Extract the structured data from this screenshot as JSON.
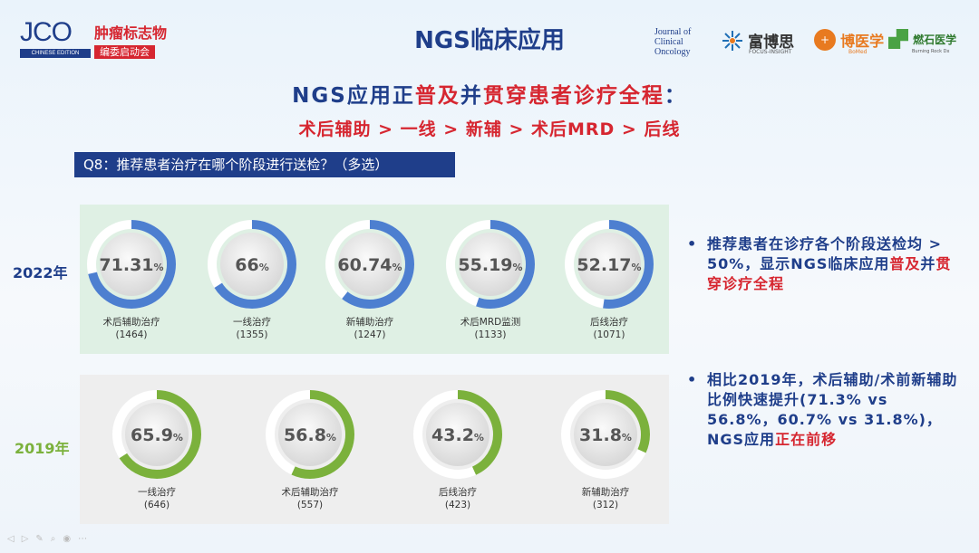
{
  "header": {
    "jco_logo": "JCO",
    "jco_edition": "CHINESE EDITION",
    "jco_tag_line1": "肿瘤标志物",
    "jco_tag_line2": "编委启动会",
    "title": "NGS临床应用",
    "partner_jco": [
      "Journal of",
      "Clinical",
      "Oncology"
    ],
    "partner_fbs": "富博思",
    "partner_fbs_sub": "FOCUS-INSIGHT",
    "partner_bm": "博医学",
    "partner_bm_sub": "BoMed",
    "partner_ps": "燃石医学",
    "partner_ps_sub": "Burning Rock Dx"
  },
  "headline": {
    "line1_part1": "NGS应用正",
    "line1_red1": "普及",
    "line1_part2": "并",
    "line1_red2": "贯穿",
    "line1_part3": "患者诊疗全程",
    "line1_part4": "：",
    "line2": "术后辅助 > 一线 > 新辅 > 术后MRD > 后线"
  },
  "question": "Q8：推荐患者治疗在哪个阶段进行送检？（多选）",
  "colors": {
    "ring_2022": "#4d7fd0",
    "ring_2019": "#7bb13c",
    "ring_track": "#ffffff",
    "accent_red": "#d62630",
    "navy": "#1f3e8a"
  },
  "chart_data": [
    {
      "type": "donut",
      "year_label": "2022年",
      "unit": "%",
      "categories": [
        "术后辅助治疗",
        "一线治疗",
        "新辅助治疗",
        "术后MRD监测",
        "后线治疗"
      ],
      "values": [
        71.31,
        66,
        60.74,
        55.19,
        52.17
      ],
      "value_labels": [
        "71.31",
        "66",
        "60.74",
        "55.19",
        "52.17"
      ],
      "counts": [
        "(1464)",
        "(1355)",
        "(1247)",
        "(1133)",
        "(1071)"
      ]
    },
    {
      "type": "donut",
      "year_label": "2019年",
      "unit": "%",
      "categories": [
        "一线治疗",
        "术后辅助治疗",
        "后线治疗",
        "新辅助治疗"
      ],
      "values": [
        65.9,
        56.8,
        43.2,
        31.8
      ],
      "value_labels": [
        "65.9",
        "56.8",
        "43.2",
        "31.8"
      ],
      "counts": [
        "(646)",
        "(557)",
        "(423)",
        "(312)"
      ]
    }
  ],
  "bullets": {
    "b1_dot": "•",
    "b1_part1": "推荐患者在诊疗各个阶段送检均 > 50%，显示NGS临床应用",
    "b1_red1": "普及",
    "b1_part2": "并",
    "b1_red2": "贯穿诊疗全程",
    "b2_dot": "•",
    "b2_part1": "相比2019年，术后辅助/术前新辅助比例快速提升(71.3% vs 56.8%，60.7% vs 31.8%)，NGS应用",
    "b2_red": "正在前移"
  },
  "footer_icons": [
    "◁",
    "▷",
    "✎",
    "⌕",
    "◉",
    "⋯"
  ]
}
